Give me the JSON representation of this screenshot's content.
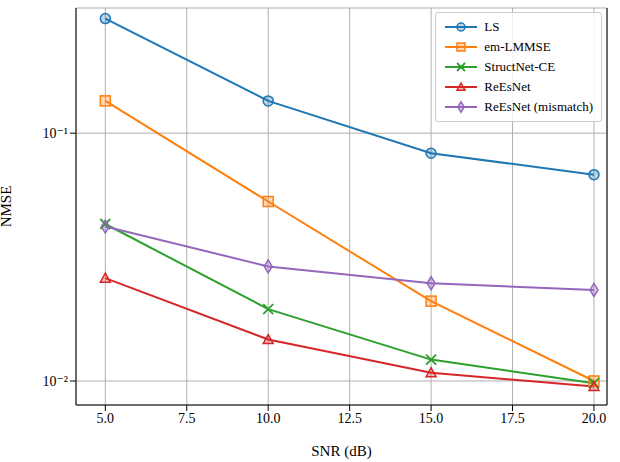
{
  "chart_data": {
    "type": "line",
    "xlabel": "SNR (dB)",
    "ylabel": "NMSE",
    "log": "y",
    "grid": true,
    "legend": "upper right",
    "x": [
      5,
      10,
      15,
      20
    ],
    "xlim": [
      4.1,
      20.4
    ],
    "xticks": [
      {
        "value": 5,
        "label": "5.0"
      },
      {
        "value": 7.5,
        "label": "7.5"
      },
      {
        "value": 10,
        "label": "10.0"
      },
      {
        "value": 12.5,
        "label": "12.5"
      },
      {
        "value": 15,
        "label": "15.0"
      },
      {
        "value": 17.5,
        "label": "17.5"
      },
      {
        "value": 20,
        "label": "20.0"
      }
    ],
    "ylim": [
      0.008,
      0.32
    ],
    "yticks": [
      {
        "value": 0.01,
        "label": "10⁻²"
      },
      {
        "value": 0.1,
        "label": "10⁻¹"
      }
    ],
    "series": [
      {
        "name": "LS",
        "color": "#1f77b4",
        "marker": "circle",
        "values": [
          0.29,
          0.135,
          0.083,
          0.068
        ]
      },
      {
        "name": "em-LMMSE",
        "color": "#ff7f0e",
        "marker": "square",
        "values": [
          0.135,
          0.053,
          0.021,
          0.01
        ]
      },
      {
        "name": "StructNet-CE",
        "color": "#2ca02c",
        "marker": "x",
        "values": [
          0.043,
          0.0195,
          0.0122,
          0.0098
        ]
      },
      {
        "name": "ReEsNet",
        "color": "#d62728",
        "marker": "triangle",
        "values": [
          0.026,
          0.0147,
          0.0108,
          0.0095
        ]
      },
      {
        "name": "ReEsNet (mismatch)",
        "color": "#9467bd",
        "marker": "diamond",
        "values": [
          0.042,
          0.029,
          0.0248,
          0.0233
        ]
      }
    ]
  }
}
